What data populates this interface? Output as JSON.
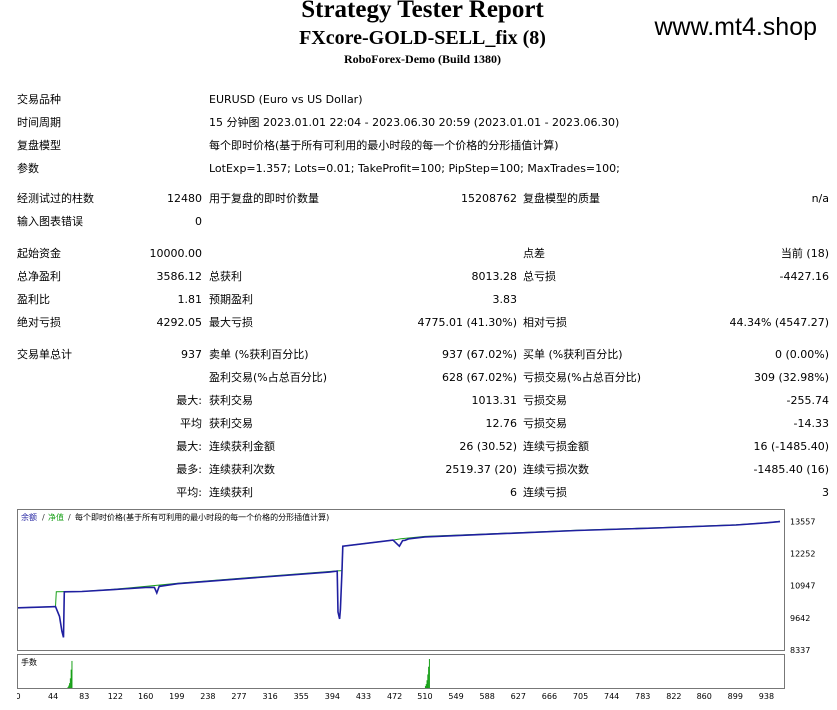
{
  "header": {
    "title": "Strategy Tester Report",
    "ea_name": "FXcore-GOLD-SELL_fix (8)",
    "server": "RoboForex-Demo (Build 1380)",
    "watermark": "www.mt4.shop"
  },
  "info": {
    "symbol_label": "交易品种",
    "symbol_value": "EURUSD (Euro vs US Dollar)",
    "period_label": "时间周期",
    "period_value": "15 分钟图 2023.01.01 22:04 - 2023.06.30 20:59 (2023.01.01 - 2023.06.30)",
    "model_label": "复盘模型",
    "model_value": "每个即时价格(基于所有可利用的最小时段的每一个价格的分形插值计算)",
    "params_label": "参数",
    "params_value": "LotExp=1.357; Lots=0.01; TakeProfit=100; PipStep=100; MaxTrades=100;"
  },
  "bars": {
    "bars_label": "经测试过的柱数",
    "bars_value": "12480",
    "ticks_label": "用于复盘的即时价数量",
    "ticks_value": "15208762",
    "quality_label": "复盘模型的质量",
    "quality_value": "n/a",
    "errors_label": "输入图表错误",
    "errors_value": "0"
  },
  "stats": {
    "deposit_label": "起始资金",
    "deposit_value": "10000.00",
    "spread_label": "点差",
    "spread_value": "当前 (18)",
    "net_label": "总净盈利",
    "net_value": "3586.12",
    "gross_profit_label": "总获利",
    "gross_profit_value": "8013.28",
    "gross_loss_label": "总亏损",
    "gross_loss_value": "-4427.16",
    "pf_label": "盈利比",
    "pf_value": "1.81",
    "payoff_label": "预期盈利",
    "payoff_value": "3.83",
    "abs_dd_label": "绝对亏损",
    "abs_dd_value": "4292.05",
    "max_dd_label": "最大亏损",
    "max_dd_value": "4775.01 (41.30%)",
    "rel_dd_label": "相对亏损",
    "rel_dd_value": "44.34% (4547.27)"
  },
  "trades": {
    "total_label": "交易单总计",
    "total_value": "937",
    "short_label": "卖单 (%获利百分比)",
    "short_value": "937 (67.02%)",
    "long_label": "买单 (%获利百分比)",
    "long_value": "0 (0.00%)",
    "won_label": "盈利交易(%占总百分比)",
    "won_value": "628 (67.02%)",
    "lost_label": "亏损交易(%占总百分比)",
    "lost_value": "309 (32.98%)",
    "largest_prefix": "最大:",
    "largest_win_label": "获利交易",
    "largest_win_value": "1013.31",
    "largest_loss_label": "亏损交易",
    "largest_loss_value": "-255.74",
    "avg_prefix": "平均",
    "avg_win_label": "获利交易",
    "avg_win_value": "12.76",
    "avg_loss_label": "亏损交易",
    "avg_loss_value": "-14.33",
    "max_prefix": "最大:",
    "max_cw_label": "连续获利金额",
    "max_cw_value": "26 (30.52)",
    "max_cl_label": "连续亏损金额",
    "max_cl_value": "16 (-1485.40)",
    "most_prefix": "最多:",
    "most_cw_label": "连续获利次数",
    "most_cw_value": "2519.37 (20)",
    "most_cl_label": "连续亏损次数",
    "most_cl_value": "-1485.40 (16)",
    "avgc_prefix": "平均:",
    "avg_cw_label": "连续获利",
    "avg_cw_value": "6",
    "avg_cl_label": "连续亏损",
    "avg_cl_value": "3"
  },
  "chart_data": {
    "type": "line",
    "legend": [
      "余额",
      "净值",
      "每个即时价格(基于所有可利用的最小时段的每一个价格的分形插值计算)"
    ],
    "colors": {
      "balance": "#1f1fa0",
      "equity": "#18a018",
      "lots": "#18a018"
    },
    "ylim": [
      8337,
      13980
    ],
    "y_ticks": [
      13557,
      12252,
      10947,
      9642,
      8337
    ],
    "x_ticks": [
      0,
      44,
      83,
      122,
      160,
      199,
      238,
      277,
      316,
      355,
      394,
      433,
      472,
      510,
      549,
      588,
      627,
      666,
      705,
      744,
      783,
      822,
      860,
      899,
      938
    ],
    "xlim": [
      0,
      960
    ],
    "series": [
      {
        "name": "余额",
        "x": [
          0,
          40,
          47,
          48,
          80,
          120,
          170,
          200,
          300,
          400,
          406,
          407,
          470,
          480,
          510,
          590,
          700,
          800,
          900,
          938,
          955
        ],
        "values": [
          10050,
          10090,
          10100,
          10700,
          10710,
          10800,
          10950,
          11050,
          11300,
          11550,
          11560,
          12550,
          12800,
          12850,
          12950,
          13050,
          13200,
          13300,
          13420,
          13500,
          13560
        ]
      },
      {
        "name": "净值",
        "x": [
          0,
          40,
          47,
          52,
          55,
          57,
          58,
          80,
          120,
          160,
          171,
          174,
          177,
          200,
          300,
          390,
          400,
          401,
          403,
          404,
          406,
          407,
          470,
          478,
          482,
          485,
          490,
          510,
          590,
          700,
          800,
          900,
          938,
          955
        ],
        "values": [
          10050,
          10090,
          10100,
          9700,
          9100,
          8850,
          10700,
          10710,
          10790,
          10880,
          10880,
          10650,
          10920,
          11030,
          11280,
          11500,
          11540,
          9880,
          9600,
          9980,
          11560,
          12550,
          12800,
          12550,
          12780,
          12790,
          12850,
          12930,
          13040,
          13190,
          13290,
          13410,
          13500,
          13550
        ]
      },
      {
        "name": "手数",
        "x": [
          62,
          63,
          64,
          65,
          66,
          67,
          510,
          511,
          512,
          513,
          514,
          515
        ],
        "values": [
          0.9,
          2.5,
          5,
          10,
          19,
          28,
          2,
          4,
          8,
          14,
          22,
          30
        ]
      }
    ]
  }
}
